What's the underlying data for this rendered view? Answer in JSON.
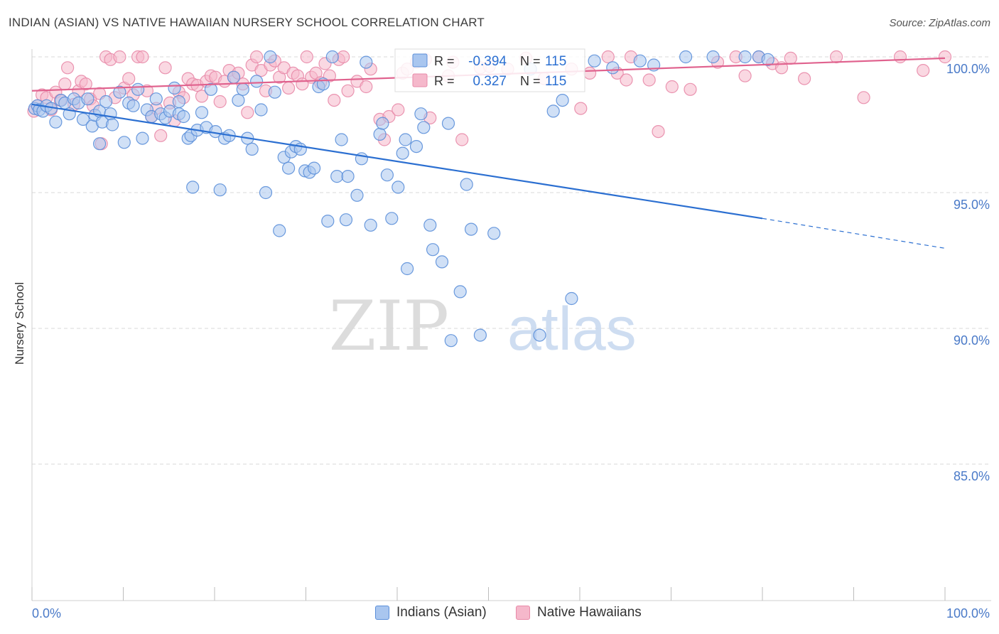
{
  "header": {
    "title": "INDIAN (ASIAN) VS NATIVE HAWAIIAN NURSERY SCHOOL CORRELATION CHART",
    "source": "Source: ZipAtlas.com"
  },
  "watermark": {
    "zip": "ZIP",
    "atlas": "atlas"
  },
  "colors": {
    "blue_fill": "#a9c6ef",
    "blue_stroke": "#5b8fd9",
    "blue_line": "#2b6fd1",
    "pink_fill": "#f5b8cb",
    "pink_stroke": "#e88aa8",
    "pink_line": "#e0628e",
    "tick_text": "#4a7ac8",
    "grid": "#d9d9d9"
  },
  "legend_top": {
    "rows": [
      {
        "r_label": "R =",
        "r_value": "-0.394",
        "n_label": "N =",
        "n_value": "115"
      },
      {
        "r_label": "R =",
        "r_value": "0.327",
        "n_label": "N =",
        "n_value": "115"
      }
    ]
  },
  "legend_bottom": {
    "items": [
      "Indians (Asian)",
      "Native Hawaiians"
    ]
  },
  "chart_data": {
    "type": "scatter",
    "title": "INDIAN (ASIAN) VS NATIVE HAWAIIAN NURSERY SCHOOL CORRELATION CHART",
    "ylabel": "Nursery School",
    "xlabel": "",
    "xlim": [
      0,
      100
    ],
    "ylim": [
      80.5,
      100.5
    ],
    "x_tick_labels": [
      "0.0%",
      "100.0%"
    ],
    "y_ticks": [
      85,
      90,
      95,
      100
    ],
    "y_tick_labels": [
      "85.0%",
      "90.0%",
      "95.0%",
      "100.0%"
    ],
    "grid": true,
    "legend_position": "top-center",
    "series": [
      {
        "name": "Indians (Asian)",
        "r": -0.394,
        "n": 115,
        "trend": {
          "x0": 0,
          "y0": 98.25,
          "x1": 80,
          "y1": 94.05,
          "dashed_to_x": 100,
          "dashed_to_y": 92.95
        },
        "points": [
          [
            0.3,
            98.1
          ],
          [
            0.6,
            98.2
          ],
          [
            0.8,
            98.05
          ],
          [
            1.2,
            98.0
          ],
          [
            1.6,
            98.2
          ],
          [
            2.1,
            98.1
          ],
          [
            2.6,
            97.6
          ],
          [
            3.2,
            98.4
          ],
          [
            3.6,
            98.3
          ],
          [
            4.1,
            97.9
          ],
          [
            4.6,
            98.45
          ],
          [
            5.1,
            98.3
          ],
          [
            5.6,
            97.7
          ],
          [
            6.1,
            98.45
          ],
          [
            6.6,
            97.45
          ],
          [
            6.9,
            97.85
          ],
          [
            7.4,
            98.0
          ],
          [
            7.7,
            97.6
          ],
          [
            7.4,
            96.8
          ],
          [
            8.1,
            98.35
          ],
          [
            8.6,
            97.9
          ],
          [
            8.8,
            97.5
          ],
          [
            9.6,
            98.7
          ],
          [
            10.1,
            96.85
          ],
          [
            10.6,
            98.3
          ],
          [
            11.1,
            98.2
          ],
          [
            11.6,
            98.8
          ],
          [
            12.1,
            97.0
          ],
          [
            12.6,
            98.05
          ],
          [
            13.1,
            97.8
          ],
          [
            13.6,
            98.45
          ],
          [
            14.1,
            97.9
          ],
          [
            14.6,
            97.75
          ],
          [
            15.1,
            98.0
          ],
          [
            15.6,
            98.85
          ],
          [
            16.1,
            98.35
          ],
          [
            16.1,
            97.9
          ],
          [
            16.6,
            97.8
          ],
          [
            17.1,
            97.0
          ],
          [
            17.4,
            97.1
          ],
          [
            17.6,
            95.2
          ],
          [
            18.1,
            97.3
          ],
          [
            18.6,
            97.95
          ],
          [
            19.1,
            97.4
          ],
          [
            19.6,
            98.8
          ],
          [
            20.1,
            97.25
          ],
          [
            20.6,
            95.1
          ],
          [
            21.1,
            97.0
          ],
          [
            21.6,
            97.1
          ],
          [
            22.1,
            99.25
          ],
          [
            22.6,
            98.4
          ],
          [
            23.1,
            98.8
          ],
          [
            23.6,
            97.0
          ],
          [
            24.1,
            96.6
          ],
          [
            24.6,
            99.1
          ],
          [
            25.1,
            98.05
          ],
          [
            25.6,
            95.0
          ],
          [
            26.1,
            100.0
          ],
          [
            26.6,
            98.7
          ],
          [
            27.1,
            93.6
          ],
          [
            27.6,
            96.3
          ],
          [
            28.1,
            95.9
          ],
          [
            28.4,
            96.5
          ],
          [
            28.9,
            96.7
          ],
          [
            29.4,
            96.6
          ],
          [
            29.9,
            95.8
          ],
          [
            30.4,
            95.75
          ],
          [
            30.9,
            95.9
          ],
          [
            31.4,
            98.9
          ],
          [
            31.9,
            99.0
          ],
          [
            32.4,
            93.95
          ],
          [
            32.9,
            100.0
          ],
          [
            33.4,
            95.6
          ],
          [
            33.9,
            96.95
          ],
          [
            34.4,
            94.0
          ],
          [
            34.6,
            95.6
          ],
          [
            35.6,
            94.9
          ],
          [
            36.1,
            96.25
          ],
          [
            36.6,
            99.8
          ],
          [
            37.1,
            93.8
          ],
          [
            38.1,
            97.15
          ],
          [
            38.4,
            97.55
          ],
          [
            38.9,
            95.65
          ],
          [
            39.4,
            94.05
          ],
          [
            40.1,
            95.2
          ],
          [
            40.6,
            96.45
          ],
          [
            40.9,
            96.95
          ],
          [
            41.1,
            92.2
          ],
          [
            42.1,
            96.7
          ],
          [
            42.6,
            97.9
          ],
          [
            42.9,
            97.4
          ],
          [
            43.6,
            93.8
          ],
          [
            43.9,
            92.9
          ],
          [
            44.9,
            92.45
          ],
          [
            45.6,
            97.55
          ],
          [
            45.9,
            89.55
          ],
          [
            46.9,
            91.35
          ],
          [
            47.6,
            95.3
          ],
          [
            48.1,
            93.65
          ],
          [
            49.1,
            89.75
          ],
          [
            50.6,
            93.5
          ],
          [
            54.6,
            99.55
          ],
          [
            55.6,
            89.75
          ],
          [
            57.1,
            98.0
          ],
          [
            58.1,
            98.4
          ],
          [
            59.1,
            91.1
          ],
          [
            61.6,
            99.85
          ],
          [
            63.6,
            99.6
          ],
          [
            66.6,
            99.85
          ],
          [
            68.1,
            99.7
          ],
          [
            71.6,
            100.0
          ],
          [
            74.6,
            100.0
          ],
          [
            78.1,
            100.0
          ],
          [
            79.6,
            100.0
          ],
          [
            80.6,
            99.9
          ]
        ]
      },
      {
        "name": "Native Hawaiians",
        "r": 0.327,
        "n": 115,
        "trend": {
          "x0": 0,
          "y0": 98.75,
          "x1": 100,
          "y1": 99.95
        },
        "points": [
          [
            0.2,
            98.0
          ],
          [
            0.6,
            98.2
          ],
          [
            1.1,
            98.6
          ],
          [
            1.6,
            98.5
          ],
          [
            2.1,
            98.05
          ],
          [
            2.6,
            98.7
          ],
          [
            3.1,
            98.4
          ],
          [
            3.6,
            99.0
          ],
          [
            3.9,
            99.6
          ],
          [
            4.6,
            98.25
          ],
          [
            5.1,
            98.75
          ],
          [
            5.4,
            99.1
          ],
          [
            5.9,
            99.0
          ],
          [
            6.4,
            98.45
          ],
          [
            6.7,
            98.2
          ],
          [
            7.4,
            98.65
          ],
          [
            7.6,
            96.8
          ],
          [
            8.1,
            100.0
          ],
          [
            8.6,
            99.9
          ],
          [
            9.1,
            98.5
          ],
          [
            9.6,
            100.0
          ],
          [
            10.1,
            98.85
          ],
          [
            10.6,
            99.2
          ],
          [
            11.1,
            98.6
          ],
          [
            11.6,
            100.0
          ],
          [
            12.1,
            100.0
          ],
          [
            12.6,
            98.75
          ],
          [
            13.1,
            97.8
          ],
          [
            13.6,
            98.1
          ],
          [
            14.1,
            97.1
          ],
          [
            14.6,
            99.6
          ],
          [
            15.1,
            98.3
          ],
          [
            15.6,
            97.65
          ],
          [
            16.1,
            98.7
          ],
          [
            16.6,
            98.5
          ],
          [
            17.1,
            99.2
          ],
          [
            17.6,
            99.0
          ],
          [
            18.1,
            98.95
          ],
          [
            18.6,
            98.55
          ],
          [
            19.1,
            99.1
          ],
          [
            19.6,
            99.3
          ],
          [
            20.1,
            99.25
          ],
          [
            20.6,
            98.35
          ],
          [
            21.1,
            99.1
          ],
          [
            21.6,
            99.5
          ],
          [
            22.1,
            99.25
          ],
          [
            22.6,
            99.4
          ],
          [
            23.1,
            99.0
          ],
          [
            23.6,
            97.95
          ],
          [
            24.1,
            99.7
          ],
          [
            24.6,
            100.0
          ],
          [
            25.1,
            99.5
          ],
          [
            25.6,
            98.75
          ],
          [
            26.1,
            99.7
          ],
          [
            26.6,
            99.85
          ],
          [
            27.1,
            99.25
          ],
          [
            27.6,
            99.6
          ],
          [
            28.1,
            98.85
          ],
          [
            28.6,
            99.4
          ],
          [
            29.1,
            99.3
          ],
          [
            29.6,
            99.0
          ],
          [
            30.1,
            100.0
          ],
          [
            30.6,
            99.25
          ],
          [
            31.1,
            99.4
          ],
          [
            31.6,
            99.05
          ],
          [
            32.1,
            99.75
          ],
          [
            32.6,
            99.3
          ],
          [
            33.1,
            98.4
          ],
          [
            33.6,
            99.9
          ],
          [
            34.1,
            100.0
          ],
          [
            34.6,
            98.75
          ],
          [
            35.6,
            99.1
          ],
          [
            36.6,
            98.9
          ],
          [
            37.1,
            99.55
          ],
          [
            38.1,
            97.7
          ],
          [
            38.6,
            96.95
          ],
          [
            39.1,
            97.8
          ],
          [
            40.1,
            98.05
          ],
          [
            40.6,
            99.4
          ],
          [
            41.1,
            99.55
          ],
          [
            42.1,
            99.8
          ],
          [
            43.1,
            99.9
          ],
          [
            43.6,
            97.75
          ],
          [
            45.6,
            99.3
          ],
          [
            46.1,
            99.8
          ],
          [
            47.1,
            96.95
          ],
          [
            49.1,
            99.6
          ],
          [
            50.1,
            99.65
          ],
          [
            52.1,
            99.55
          ],
          [
            54.1,
            99.95
          ],
          [
            56.1,
            99.2
          ],
          [
            59.1,
            99.55
          ],
          [
            60.1,
            98.1
          ],
          [
            61.1,
            99.4
          ],
          [
            63.1,
            100.0
          ],
          [
            64.1,
            99.4
          ],
          [
            65.1,
            99.15
          ],
          [
            65.6,
            100.0
          ],
          [
            67.6,
            99.15
          ],
          [
            68.6,
            97.25
          ],
          [
            70.1,
            98.9
          ],
          [
            72.1,
            98.8
          ],
          [
            75.1,
            99.8
          ],
          [
            77.1,
            100.0
          ],
          [
            78.1,
            99.3
          ],
          [
            79.6,
            100.0
          ],
          [
            81.1,
            99.75
          ],
          [
            82.1,
            99.6
          ],
          [
            83.1,
            99.95
          ],
          [
            84.6,
            99.2
          ],
          [
            88.1,
            100.0
          ],
          [
            91.1,
            98.5
          ],
          [
            95.1,
            100.0
          ],
          [
            97.6,
            99.5
          ],
          [
            100.0,
            100.0
          ]
        ]
      }
    ]
  }
}
